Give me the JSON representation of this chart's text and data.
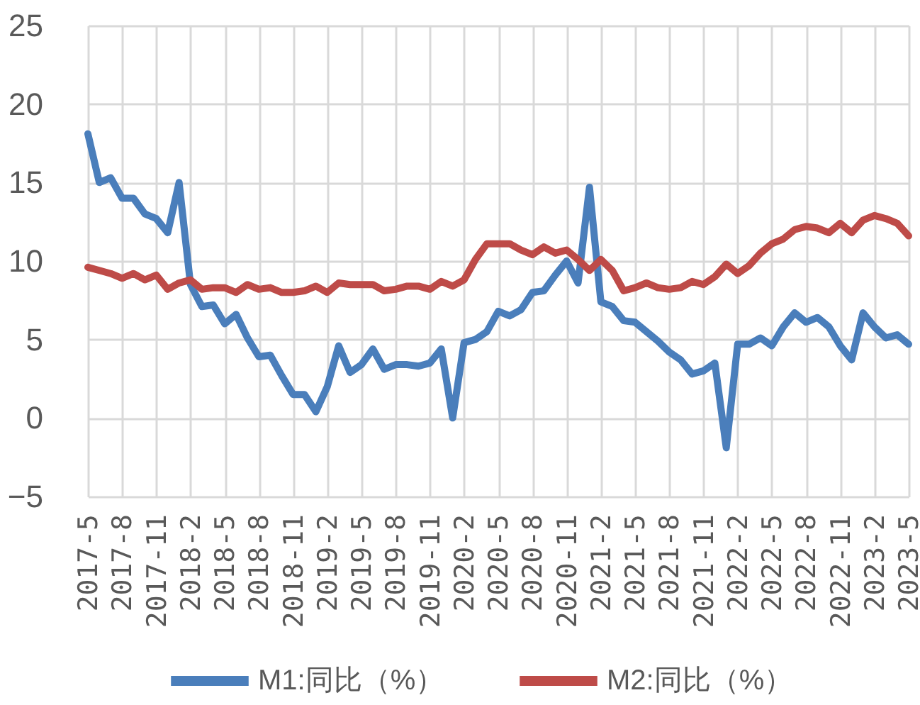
{
  "chart_data": {
    "type": "line",
    "categories": [
      "2017-5",
      null,
      null,
      "2017-8",
      null,
      null,
      "2017-11",
      null,
      null,
      "2018-2",
      null,
      null,
      "2018-5",
      null,
      null,
      "2018-8",
      null,
      null,
      "2018-11",
      null,
      null,
      "2019-2",
      null,
      null,
      "2019-5",
      null,
      null,
      "2019-8",
      null,
      null,
      "2019-11",
      null,
      null,
      "2020-2",
      null,
      null,
      "2020-5",
      null,
      null,
      "2020-8",
      null,
      null,
      "2020-11",
      null,
      null,
      "2021-2",
      null,
      null,
      "2021-5",
      null,
      null,
      "2021-8",
      null,
      null,
      "2021-11",
      null,
      null,
      "2022-2",
      null,
      null,
      "2022-5",
      null,
      null,
      "2022-8",
      null,
      null,
      "2022-11",
      null,
      null,
      "2023-2",
      null,
      null,
      "2023-5"
    ],
    "series": [
      {
        "name": "M1:同比（%）",
        "color": "#4a7ebb",
        "values": [
          18.1,
          15.0,
          15.3,
          14.0,
          14.0,
          13.0,
          12.7,
          11.8,
          15.0,
          8.5,
          7.1,
          7.2,
          6.0,
          6.6,
          5.1,
          3.9,
          4.0,
          2.7,
          1.5,
          1.5,
          0.4,
          2.0,
          4.6,
          2.9,
          3.4,
          4.4,
          3.1,
          3.4,
          3.4,
          3.3,
          3.5,
          4.4,
          0.0,
          4.8,
          5.0,
          5.5,
          6.8,
          6.5,
          6.9,
          8.0,
          8.1,
          9.1,
          10.0,
          8.6,
          14.7,
          7.4,
          7.1,
          6.2,
          6.1,
          5.5,
          4.9,
          4.2,
          3.7,
          2.8,
          3.0,
          3.5,
          -1.9,
          4.7,
          4.7,
          5.1,
          4.6,
          5.8,
          6.7,
          6.1,
          6.4,
          5.8,
          4.6,
          3.7,
          6.7,
          5.8,
          5.1,
          5.3,
          4.7
        ]
      },
      {
        "name": "M2:同比（%）",
        "color": "#be4b48",
        "values": [
          9.6,
          9.4,
          9.2,
          8.9,
          9.2,
          8.8,
          9.1,
          8.2,
          8.6,
          8.8,
          8.2,
          8.3,
          8.3,
          8.0,
          8.5,
          8.2,
          8.3,
          8.0,
          8.0,
          8.1,
          8.4,
          8.0,
          8.6,
          8.5,
          8.5,
          8.5,
          8.1,
          8.2,
          8.4,
          8.4,
          8.2,
          8.7,
          8.4,
          8.8,
          10.1,
          11.1,
          11.1,
          11.1,
          10.7,
          10.4,
          10.9,
          10.5,
          10.7,
          10.1,
          9.4,
          10.1,
          9.4,
          8.1,
          8.3,
          8.6,
          8.3,
          8.2,
          8.3,
          8.7,
          8.5,
          9.0,
          9.8,
          9.2,
          9.7,
          10.5,
          11.1,
          11.4,
          12.0,
          12.2,
          12.1,
          11.8,
          12.4,
          11.8,
          12.6,
          12.9,
          12.7,
          12.4,
          11.6
        ]
      }
    ],
    "ylim": [
      -5,
      25
    ],
    "yticks": [
      -5,
      0,
      5,
      10,
      15,
      20,
      25
    ],
    "grid": true,
    "legend": "bottom"
  }
}
